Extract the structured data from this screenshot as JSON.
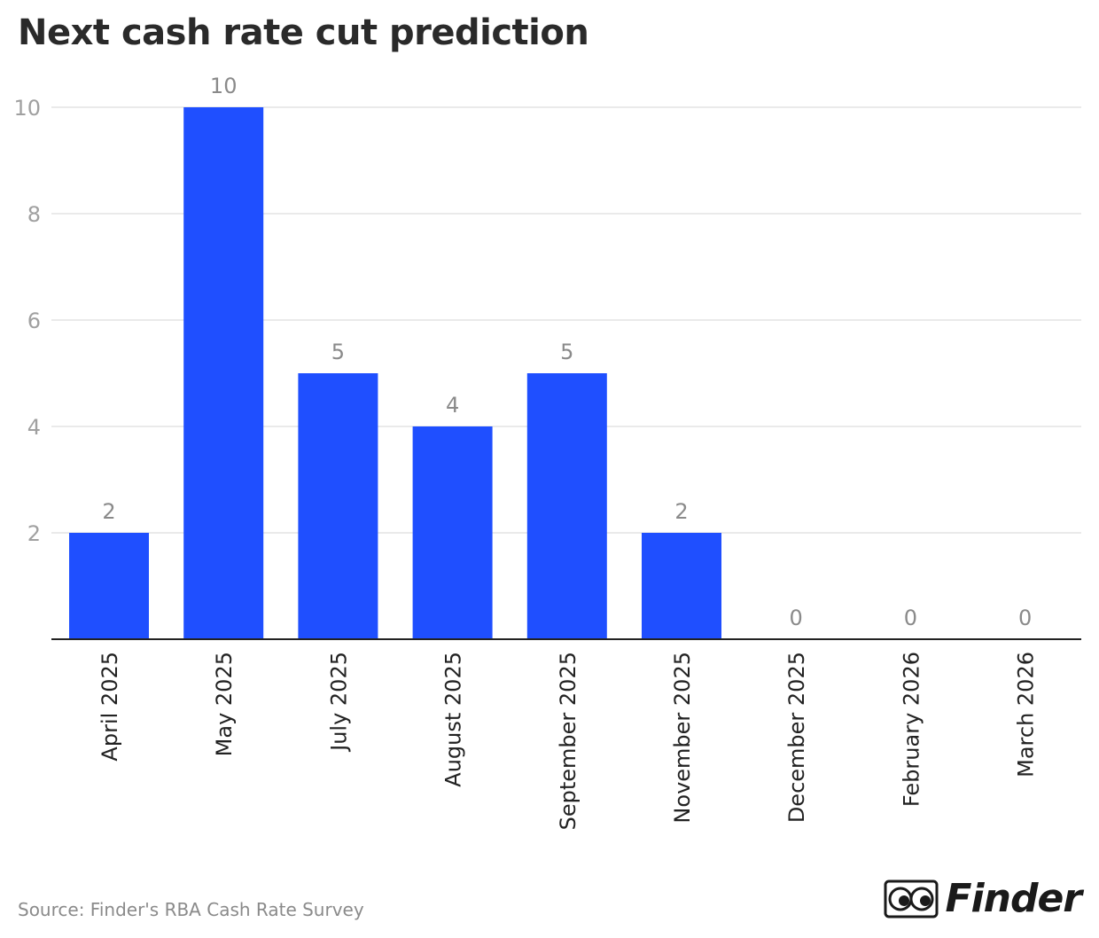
{
  "title": "Next cash rate cut prediction",
  "source": "Source: Finder's RBA Cash Rate Survey",
  "brand": {
    "name": "Finder",
    "icon": "finder-eyes-logo"
  },
  "colors": {
    "bar": "#1f4fff",
    "grid": "#e3e3e3",
    "axis": "#222222",
    "label": "#8a8a8a",
    "tick": "#a0a0a0"
  },
  "chart_data": {
    "type": "bar",
    "categories": [
      "April 2025",
      "May 2025",
      "July 2025",
      "August 2025",
      "September 2025",
      "November 2025",
      "December 2025",
      "February 2026",
      "March 2026"
    ],
    "values": [
      2,
      10,
      5,
      4,
      5,
      2,
      0,
      0,
      0
    ],
    "yticks": [
      2,
      4,
      6,
      8,
      10
    ],
    "ylim": [
      0,
      10
    ],
    "grid": true,
    "data_labels": true
  }
}
